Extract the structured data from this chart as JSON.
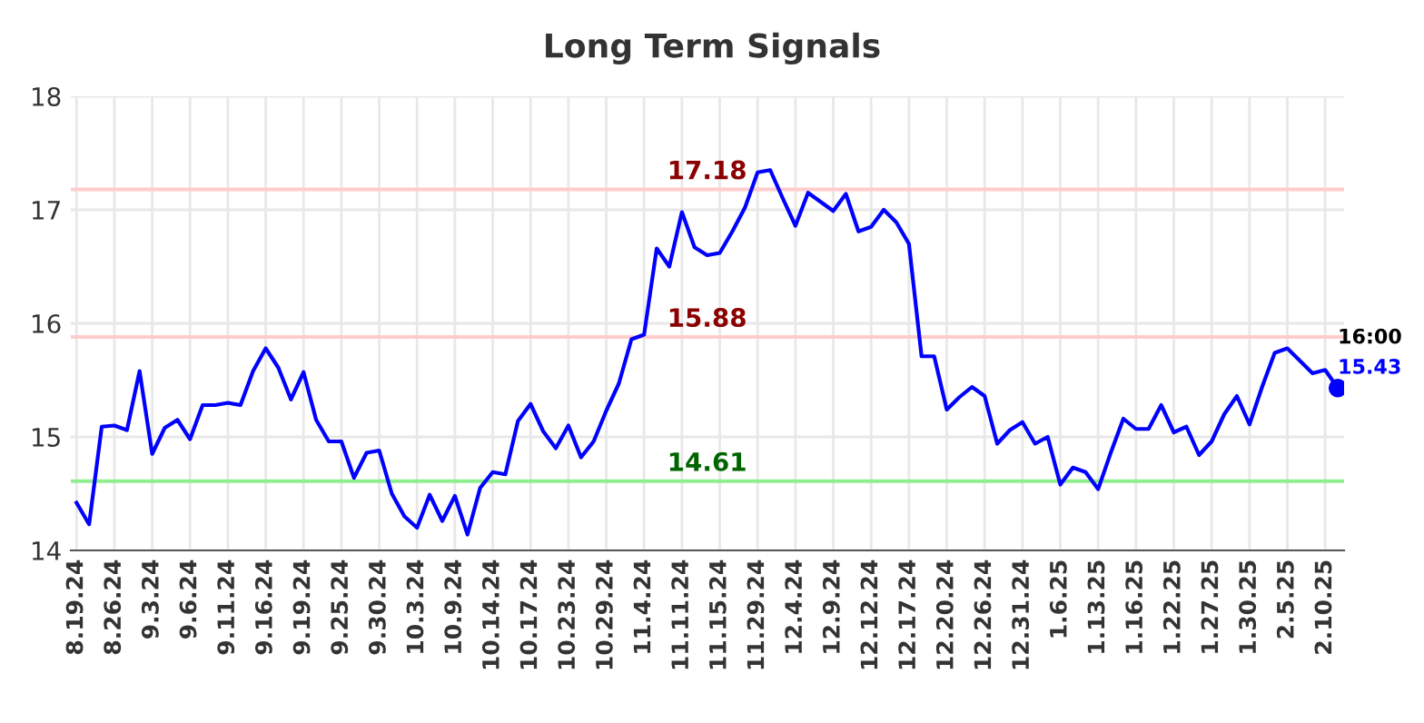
{
  "chart_data": {
    "type": "line",
    "title": "Long Term Signals",
    "categories": [
      "8.19.24",
      null,
      null,
      "8.26.24",
      null,
      null,
      "9.3.24",
      null,
      null,
      "9.6.24",
      null,
      null,
      "9.11.24",
      null,
      null,
      "9.16.24",
      null,
      null,
      "9.19.24",
      null,
      null,
      "9.25.24",
      null,
      null,
      "9.30.24",
      null,
      null,
      "10.3.24",
      null,
      null,
      "10.9.24",
      null,
      null,
      "10.14.24",
      null,
      null,
      "10.17.24",
      null,
      null,
      "10.23.24",
      null,
      null,
      "10.29.24",
      null,
      null,
      "11.4.24",
      null,
      null,
      "11.11.24",
      null,
      null,
      "11.15.24",
      null,
      null,
      "11.29.24",
      null,
      null,
      "12.4.24",
      null,
      null,
      "12.9.24",
      null,
      null,
      "12.12.24",
      null,
      null,
      "12.17.24",
      null,
      null,
      "12.20.24",
      null,
      null,
      "12.26.24",
      null,
      null,
      "12.31.24",
      null,
      null,
      "1.6.25",
      null,
      null,
      "1.13.25",
      null,
      null,
      "1.16.25",
      null,
      null,
      "1.22.25",
      null,
      null,
      "1.27.25",
      null,
      null,
      "1.30.25",
      null,
      null,
      "2.5.25",
      null,
      null,
      "2.10.25",
      null
    ],
    "series": [
      {
        "color": "#0000ff",
        "values": [
          14.42,
          14.23,
          15.09,
          15.1,
          15.06,
          15.58,
          14.85,
          15.08,
          15.15,
          14.98,
          15.28,
          15.28,
          15.3,
          15.28,
          15.58,
          15.78,
          15.61,
          15.33,
          15.57,
          15.15,
          14.96,
          14.96,
          14.64,
          14.86,
          14.88,
          14.5,
          14.3,
          14.2,
          14.49,
          14.26,
          14.48,
          14.14,
          14.55,
          14.69,
          14.67,
          15.14,
          15.29,
          15.05,
          14.9,
          15.1,
          14.82,
          14.96,
          15.23,
          15.47,
          15.86,
          15.9,
          16.66,
          16.5,
          16.98,
          16.67,
          16.6,
          16.62,
          16.81,
          17.02,
          17.33,
          17.35,
          17.1,
          16.86,
          17.15,
          17.07,
          16.99,
          17.14,
          16.81,
          16.85,
          17.0,
          16.89,
          16.7,
          15.71,
          15.71,
          15.24,
          15.35,
          15.44,
          15.36,
          14.94,
          15.06,
          15.13,
          14.94,
          15.0,
          14.58,
          14.73,
          14.69,
          14.54,
          14.86,
          15.16,
          15.07,
          15.07,
          15.28,
          15.04,
          15.09,
          14.84,
          14.96,
          15.2,
          15.36,
          15.11,
          15.44,
          15.74,
          15.78,
          15.67,
          15.56,
          15.59,
          15.43
        ]
      },
      {
        "type": "scatter",
        "color": "#0000ff",
        "values": [
          null,
          null,
          null,
          null,
          null,
          null,
          null,
          null,
          null,
          null,
          null,
          null,
          null,
          null,
          null,
          null,
          null,
          null,
          null,
          null,
          null,
          null,
          null,
          null,
          null,
          null,
          null,
          null,
          null,
          null,
          null,
          null,
          null,
          null,
          null,
          null,
          null,
          null,
          null,
          null,
          null,
          null,
          null,
          null,
          null,
          null,
          null,
          null,
          null,
          null,
          null,
          null,
          null,
          null,
          null,
          null,
          null,
          null,
          null,
          null,
          null,
          null,
          null,
          null,
          null,
          null,
          null,
          null,
          null,
          null,
          null,
          null,
          null,
          null,
          null,
          null,
          null,
          null,
          null,
          null,
          null,
          null,
          null,
          null,
          null,
          null,
          null,
          null,
          null,
          null,
          null,
          null,
          null,
          null,
          null,
          null,
          null,
          null,
          null,
          null,
          15.43
        ]
      }
    ],
    "ylim": [
      14,
      18
    ],
    "yticks": [
      14,
      15,
      16,
      17,
      18
    ],
    "grid": true,
    "ref_lines": [
      {
        "axis": "y",
        "value": 17.18,
        "label": "17.18",
        "color": "#ffcccc"
      },
      {
        "axis": "y",
        "value": 15.88,
        "label": "15.88",
        "color": "#ffcccc"
      },
      {
        "axis": "y",
        "value": 14.61,
        "label": "14.61",
        "color": "#90ee90"
      }
    ],
    "annotations": [
      "16:00",
      "15.43"
    ]
  }
}
